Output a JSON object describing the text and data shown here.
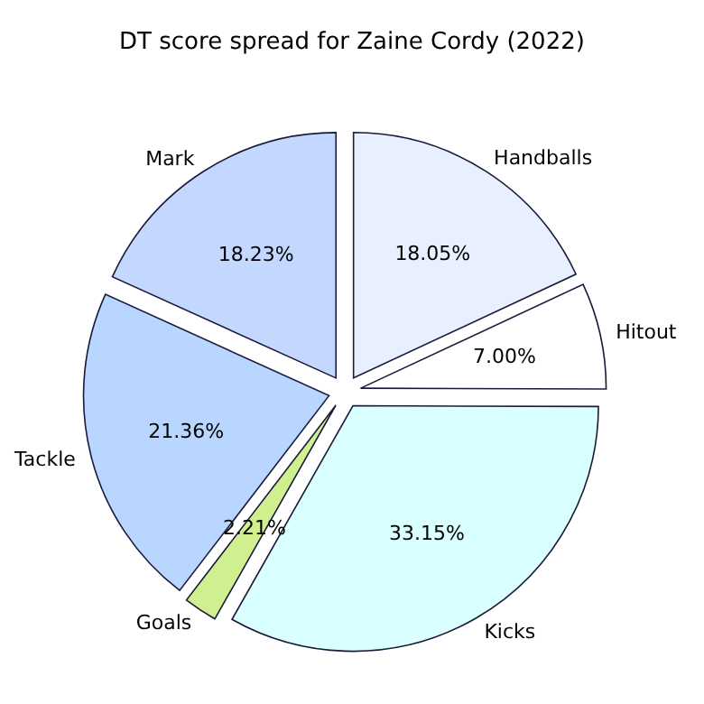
{
  "chart_data": {
    "type": "pie",
    "title": "DT score spread for Zaine Cordy (2022)",
    "categories": [
      "Handballs",
      "Hitout",
      "Kicks",
      "Goals",
      "Tackle",
      "Mark"
    ],
    "values": [
      18.05,
      7.0,
      33.15,
      2.21,
      21.36,
      18.23
    ],
    "value_labels": [
      "18.05%",
      "7.00%",
      "33.15%",
      "2.21%",
      "21.36%",
      "18.23%"
    ],
    "colors": [
      "#e8f0ff",
      "#ffffff",
      "#d9ffff",
      "#d0f090",
      "#b8d6ff",
      "#c4d8ff"
    ]
  }
}
